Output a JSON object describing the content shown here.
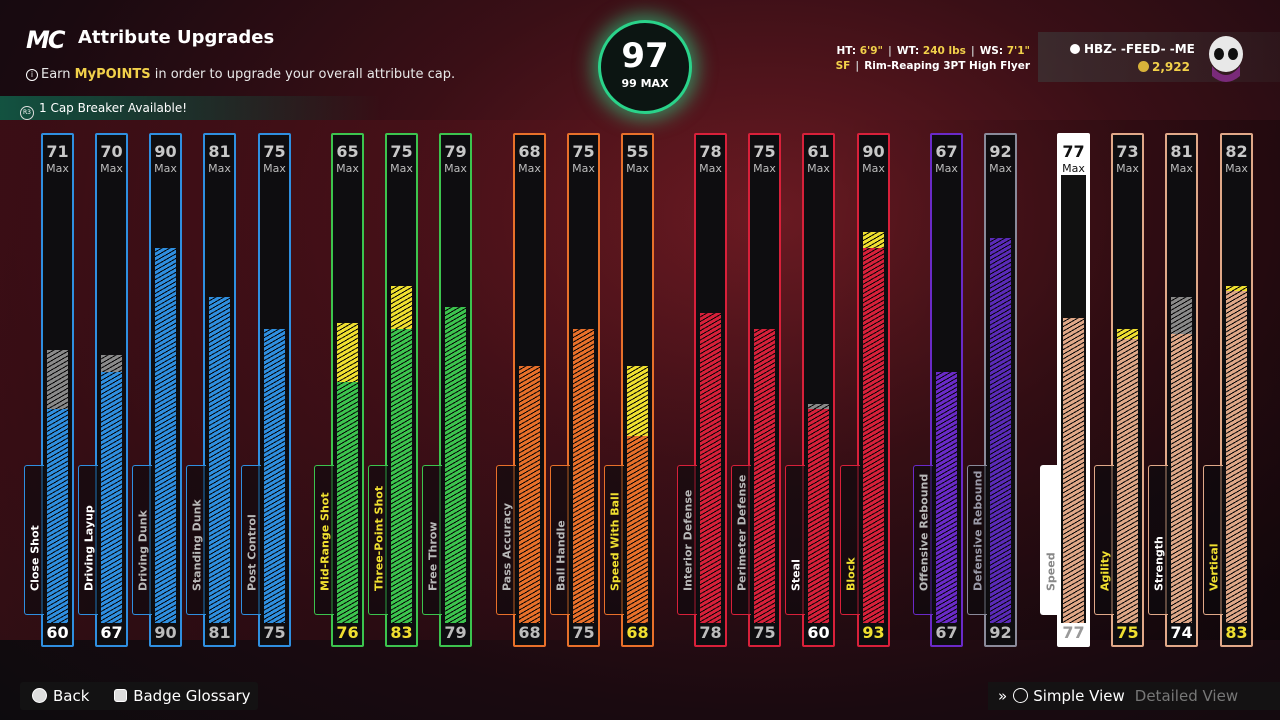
{
  "header": {
    "logo": "MC",
    "title": "Attribute Upgrades",
    "subtitle_pre": "Earn ",
    "subtitle_hl": "MyPOINTS",
    "subtitle_post": " in order to upgrade your overall attribute cap.",
    "cap_breaker": "1 Cap Breaker Available!"
  },
  "overall": {
    "value": "97",
    "max_label": "99 MAX"
  },
  "player": {
    "ht_label": "HT:",
    "ht": "6'9\"",
    "wt_label": "WT:",
    "wt": "240 lbs",
    "ws_label": "WS:",
    "ws": "7'1\"",
    "position": "SF",
    "archetype": "Rim-Reaping 3PT High Flyer",
    "gamertag": "HBZ-  -FEED-  -ME",
    "vc": "2,922"
  },
  "colors": {
    "blue": "#2f8fe0",
    "green": "#3cc44e",
    "orange": "#e8702a",
    "red": "#d8203a",
    "purple": "#6a2ac8",
    "tan": "#e0a888",
    "yellow": "#f0e030",
    "gray": "#8a8a8a",
    "white": "#ffffff"
  },
  "attributes": [
    {
      "name": "Close Shot",
      "current": "60",
      "max": "71",
      "color": "blue",
      "ext": "gray",
      "extTop": 71
    },
    {
      "name": "Driving Layup",
      "current": "67",
      "max": "70",
      "color": "blue",
      "ext": "gray",
      "extTop": 70
    },
    {
      "name": "Driving Dunk",
      "current": "90",
      "max": "90",
      "color": "blue",
      "muted": true
    },
    {
      "name": "Standing Dunk",
      "current": "81",
      "max": "81",
      "color": "blue",
      "muted": true
    },
    {
      "name": "Post Control",
      "current": "75",
      "max": "75",
      "color": "blue",
      "muted": true
    },
    {
      "name": "Mid-Range Shot",
      "current": "76",
      "max": "65",
      "color": "green",
      "ext": "yellow",
      "base": 65,
      "yellowLabel": true
    },
    {
      "name": "Three-Point Shot",
      "current": "83",
      "max": "75",
      "color": "green",
      "ext": "yellow",
      "base": 75,
      "yellowLabel": true
    },
    {
      "name": "Free Throw",
      "current": "79",
      "max": "79",
      "color": "green",
      "muted": true
    },
    {
      "name": "Pass Accuracy",
      "current": "68",
      "max": "68",
      "color": "orange",
      "muted": true
    },
    {
      "name": "Ball Handle",
      "current": "75",
      "max": "75",
      "color": "orange",
      "muted": true
    },
    {
      "name": "Speed With Ball",
      "current": "68",
      "max": "55",
      "color": "orange",
      "ext": "yellow",
      "base": 55,
      "yellowLabel": true
    },
    {
      "name": "Interior Defense",
      "current": "78",
      "max": "78",
      "color": "red",
      "muted": true
    },
    {
      "name": "Perimeter Defense",
      "current": "75",
      "max": "75",
      "color": "red",
      "muted": true
    },
    {
      "name": "Steal",
      "current": "60",
      "max": "61",
      "color": "red",
      "ext": "gray",
      "extTop": 61,
      "whiteLabel": true
    },
    {
      "name": "Block",
      "current": "93",
      "max": "90",
      "color": "red",
      "ext": "yellow",
      "base": 90,
      "yellowLabel": true
    },
    {
      "name": "Offensive Rebound",
      "current": "67",
      "max": "67",
      "color": "purple",
      "muted": true
    },
    {
      "name": "Defensive Rebound",
      "current": "92",
      "max": "92",
      "color": "purple",
      "dimmed": true
    },
    {
      "name": "Speed",
      "current": "77",
      "max": "77",
      "color": "tan",
      "selected": true
    },
    {
      "name": "Agility",
      "current": "75",
      "max": "73",
      "color": "tan",
      "ext": "yellow",
      "base": 73,
      "yellowLabel": true
    },
    {
      "name": "Strength",
      "current": "74",
      "max": "81",
      "color": "tan",
      "ext": "gray",
      "extTop": 81,
      "whiteLabel": true
    },
    {
      "name": "Vertical",
      "current": "83",
      "max": "82",
      "color": "tan",
      "ext": "yellow",
      "base": 82,
      "yellowLabel": true
    }
  ],
  "max_label": "Max",
  "footer": {
    "back": "Back",
    "badge_glossary": "Badge Glossary",
    "simple_view": "Simple View",
    "detailed_view": "Detailed View"
  }
}
